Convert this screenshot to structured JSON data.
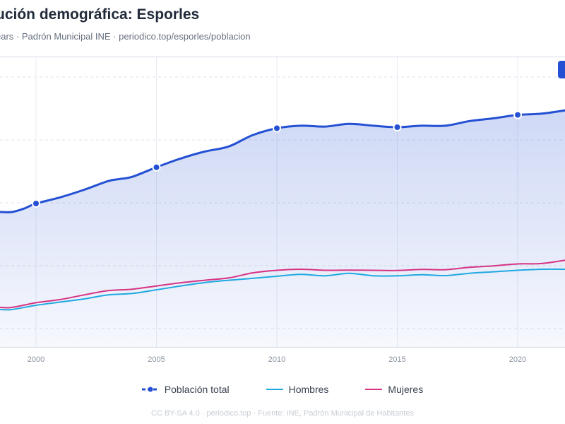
{
  "header": {
    "title": "ución demográfica: Esporles",
    "subtitle": "ears · Padrón Municipal INE · periodico.top/esporles/poblacion"
  },
  "footer": {
    "text": "CC BY-SA 4.0 · periodico.top · Fuente: INE, Padrón Municipal de Habitantes"
  },
  "colors": {
    "total": "#2450d3",
    "hombres": "#1fa9e0",
    "mujeres": "#d63384",
    "grid": "#dde3ee"
  },
  "chart_data": {
    "type": "line",
    "x_ticks": [
      2000,
      2005,
      2010,
      2015,
      2020
    ],
    "x_range": [
      1998.5,
      2022
    ],
    "y_range": [
      0,
      100
    ],
    "grid": true,
    "legend_position": "bottom",
    "marker_years": [
      2000,
      2005,
      2010,
      2015,
      2020
    ],
    "series": [
      {
        "name": "Población total",
        "key": "total",
        "style": "dashed-marker",
        "fill": true,
        "x": [
          1998.5,
          1999,
          1999.5,
          2000,
          2001,
          2002,
          2003,
          2003.5,
          2004,
          2005,
          2006,
          2007,
          2008,
          2009,
          2010,
          2011,
          2012,
          2013,
          2014,
          2015,
          2016,
          2017,
          2018,
          2019,
          2020,
          2021,
          2022
        ],
        "values": [
          55.0,
          55.0,
          56.6,
          59.0,
          61.9,
          65.5,
          69.6,
          70.6,
          71.6,
          76.1,
          80.2,
          83.5,
          85.9,
          91.3,
          94.5,
          95.7,
          95.3,
          96.6,
          95.7,
          95.0,
          95.7,
          95.7,
          97.9,
          99.2,
          100.8,
          101.4,
          103.0
        ]
      },
      {
        "name": "Hombres",
        "key": "hombres",
        "style": "line",
        "fill": false,
        "x": [
          1998.5,
          1999,
          2000,
          2001,
          2002,
          2003,
          2004,
          2005,
          2006,
          2007,
          2008,
          2009,
          2010,
          2011,
          2012,
          2013,
          2014,
          2015,
          2016,
          2017,
          2018,
          2019,
          2020,
          2021,
          2022
        ],
        "values": [
          9.0,
          9.0,
          11.0,
          12.5,
          14.0,
          15.9,
          16.6,
          18.3,
          20.1,
          21.7,
          22.8,
          23.7,
          24.7,
          25.6,
          24.9,
          26.1,
          24.9,
          24.9,
          25.4,
          25.0,
          26.1,
          26.8,
          27.5,
          28.0,
          28.0
        ]
      },
      {
        "name": "Mujeres",
        "key": "mujeres",
        "style": "line",
        "fill": false,
        "x": [
          1998.5,
          1999,
          2000,
          2001,
          2002,
          2003,
          2004,
          2005,
          2006,
          2007,
          2008,
          2009,
          2010,
          2011,
          2012,
          2013,
          2014,
          2015,
          2016,
          2017,
          2018,
          2019,
          2020,
          2021,
          2022
        ],
        "values": [
          10.0,
          10.0,
          12.2,
          13.7,
          15.9,
          17.9,
          18.6,
          20.1,
          21.6,
          22.8,
          23.9,
          26.3,
          27.5,
          28.0,
          27.5,
          27.6,
          27.5,
          27.4,
          27.9,
          27.8,
          28.9,
          29.6,
          30.5,
          30.7,
          32.3
        ]
      }
    ]
  }
}
